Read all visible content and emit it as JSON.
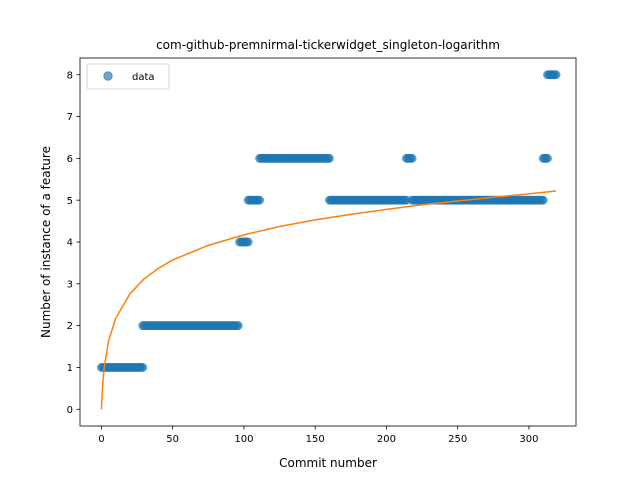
{
  "chart_data": {
    "type": "scatter",
    "title": "com-github-premnirmal-tickerwidget_singleton-logarithm",
    "xlabel": "Commit number",
    "ylabel": "Number of instance of a feature",
    "xlim": [
      -15,
      333
    ],
    "ylim": [
      -0.4,
      8.4
    ],
    "xticks": [
      0,
      50,
      100,
      150,
      200,
      250,
      300
    ],
    "yticks": [
      0,
      1,
      2,
      3,
      4,
      5,
      6,
      7,
      8
    ],
    "grid": false,
    "legend": {
      "position": "top-left",
      "entries": [
        "data"
      ]
    },
    "colors": {
      "data": "#1f77b4",
      "fit": "#ff7f0e"
    },
    "series": [
      {
        "name": "data",
        "kind": "scatter",
        "segments": [
          {
            "x_start": 0,
            "x_end": 29,
            "y": 1
          },
          {
            "x_start": 29,
            "x_end": 96,
            "y": 2
          },
          {
            "x_start": 97,
            "x_end": 103,
            "y": 4
          },
          {
            "x_start": 103,
            "x_end": 111,
            "y": 5
          },
          {
            "x_start": 111,
            "x_end": 160,
            "y": 6
          },
          {
            "x_start": 160,
            "x_end": 214,
            "y": 5
          },
          {
            "x_start": 214,
            "x_end": 218,
            "y": 6
          },
          {
            "x_start": 218,
            "x_end": 310,
            "y": 5
          },
          {
            "x_start": 310,
            "x_end": 313,
            "y": 6
          },
          {
            "x_start": 313,
            "x_end": 319,
            "y": 8
          }
        ]
      },
      {
        "kind": "line",
        "model": "logarithm",
        "x": [
          0,
          1,
          2,
          5,
          10,
          20,
          30,
          40,
          50,
          75,
          100,
          125,
          150,
          175,
          200,
          225,
          250,
          275,
          300,
          319
        ],
        "y": [
          0.0,
          0.63,
          1.0,
          1.63,
          2.17,
          2.76,
          3.12,
          3.37,
          3.57,
          3.92,
          4.17,
          4.37,
          4.53,
          4.66,
          4.78,
          4.89,
          4.98,
          5.07,
          5.15,
          5.22
        ]
      }
    ]
  }
}
